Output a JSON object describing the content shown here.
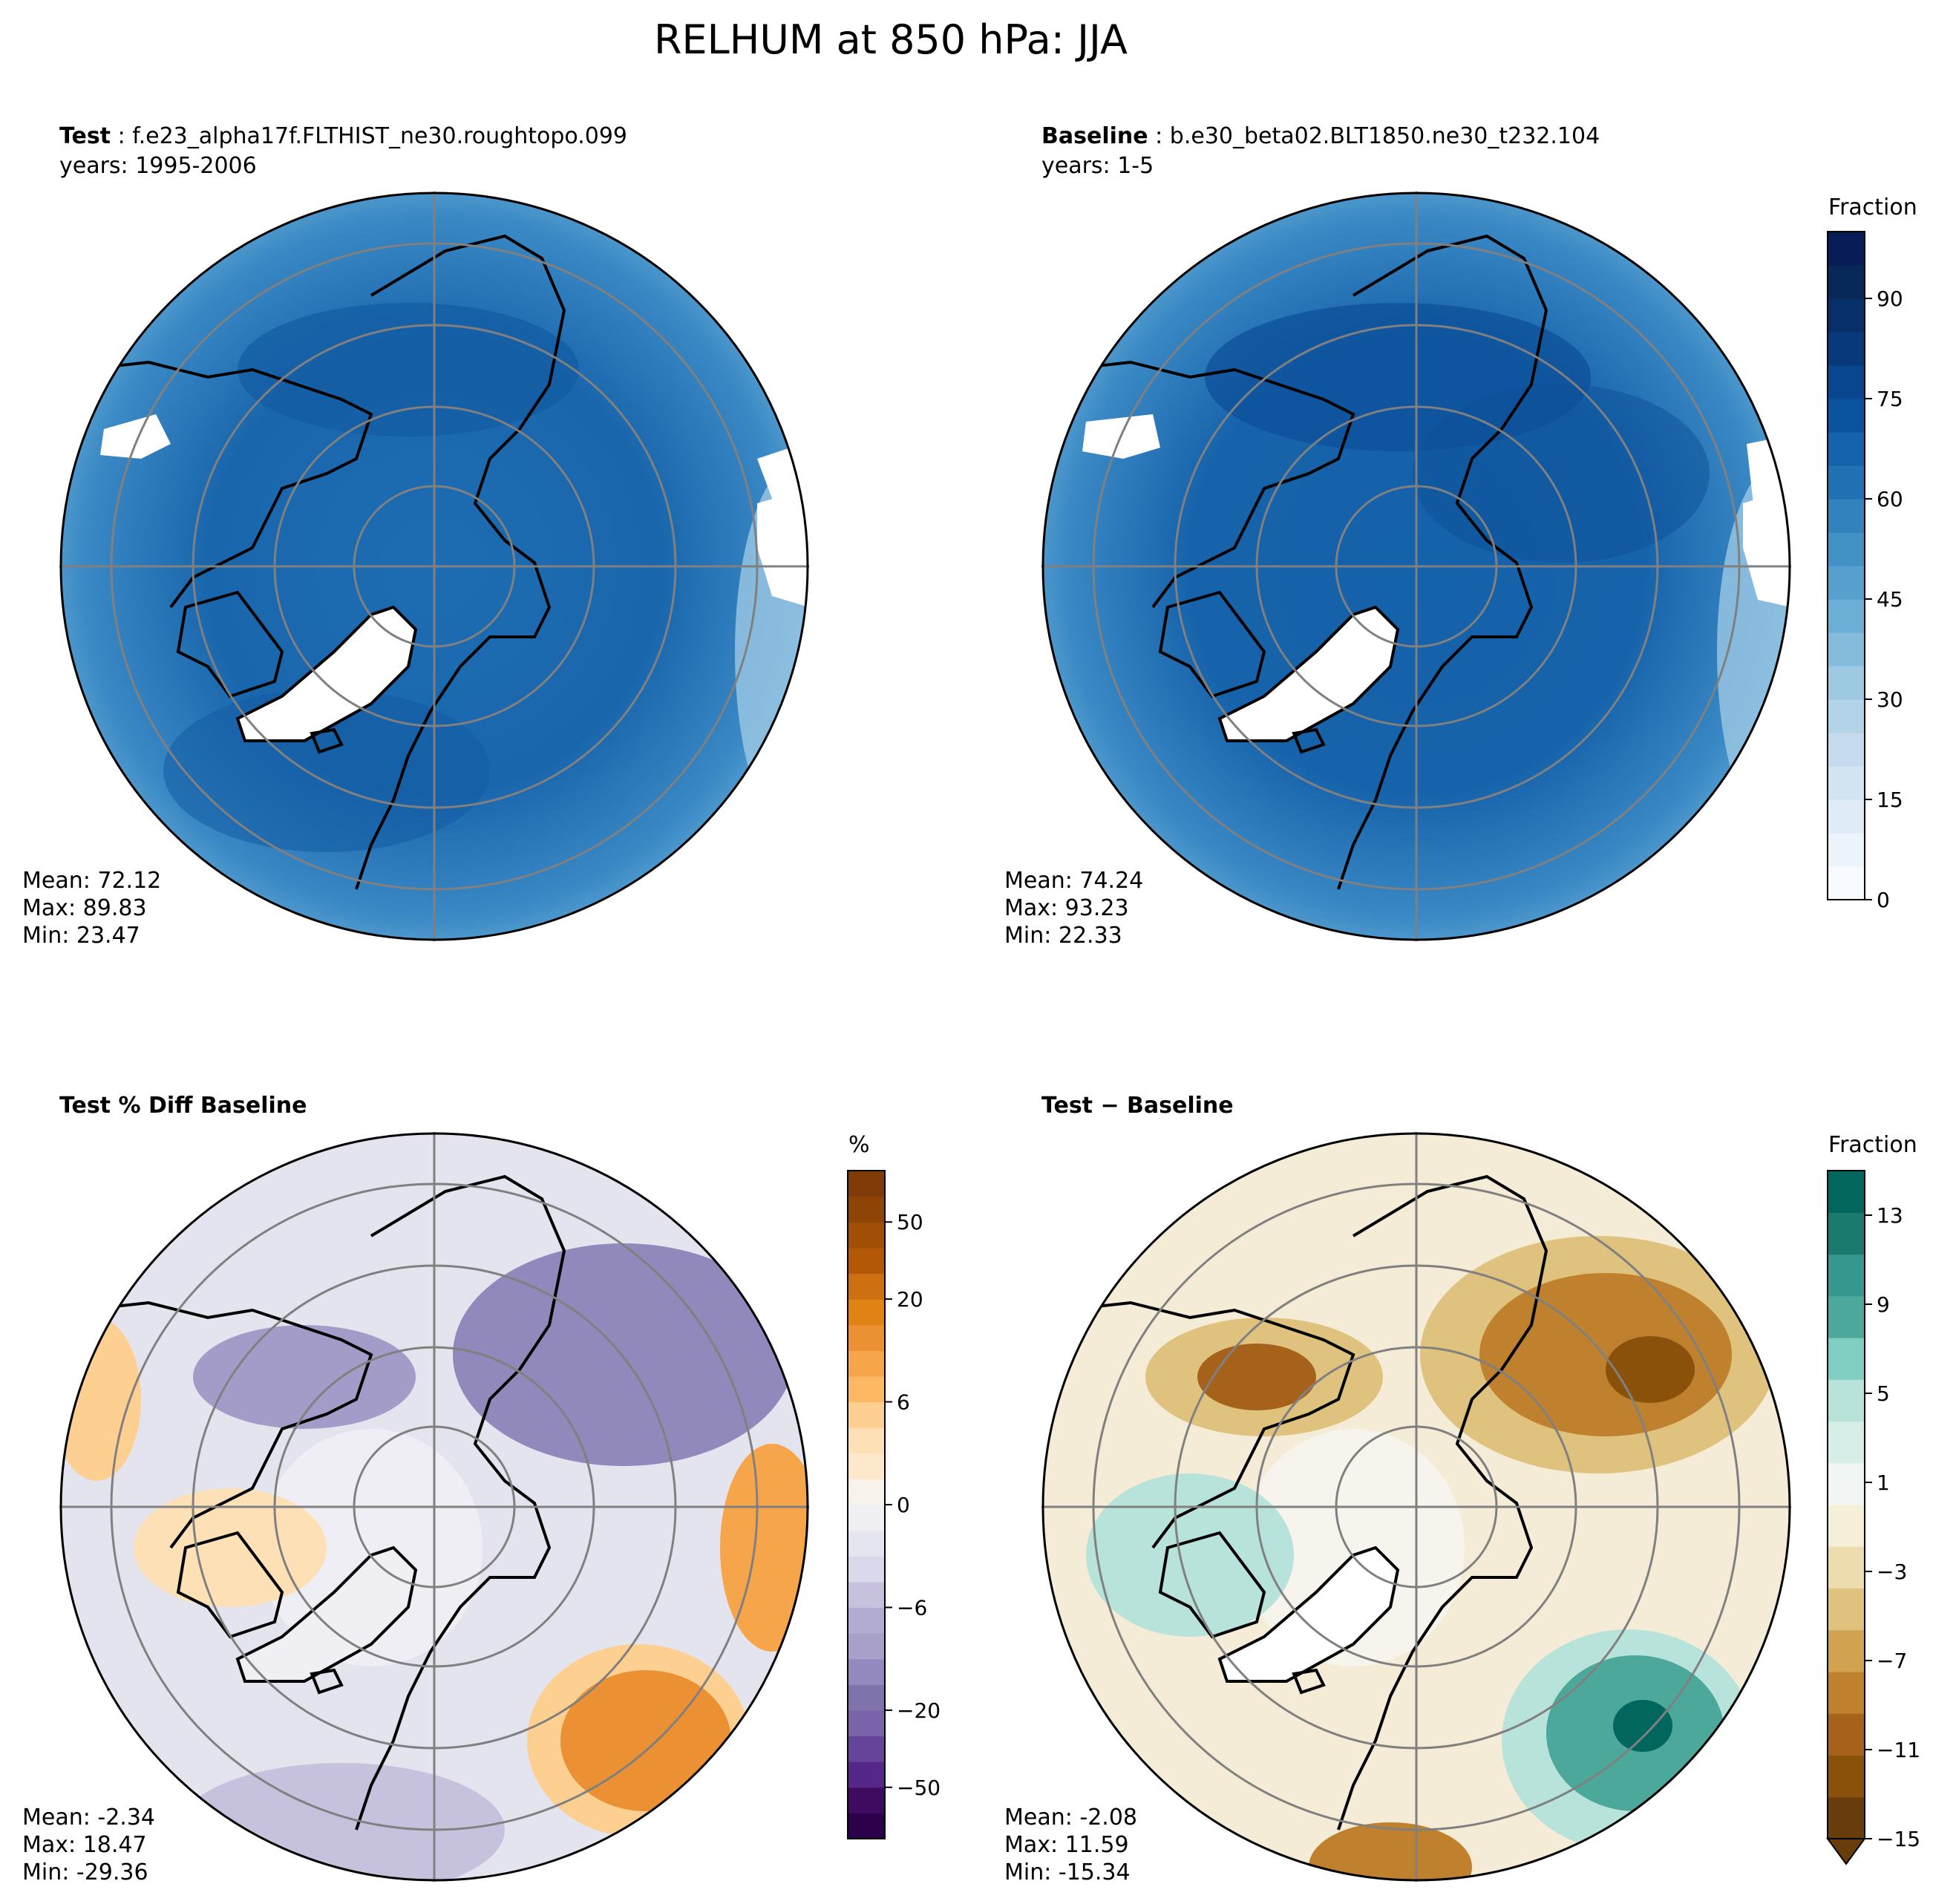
{
  "figure_title": "RELHUM at 850 hPa: JJA",
  "panels": {
    "test": {
      "label": "Test",
      "case": "f.e23_alpha17f.FLTHIST_ne30.roughtopo.099",
      "years": "years: 1995-2006",
      "mean": "Mean: 72.12",
      "max": "Max: 89.83",
      "min": "Min: 23.47"
    },
    "baseline": {
      "label": "Baseline",
      "case": "b.e30_beta02.BLT1850.ne30_t232.104",
      "years": "years: 1-5",
      "mean": "Mean: 74.24",
      "max": "Max: 93.23",
      "min": "Min: 22.33"
    },
    "pctdiff": {
      "label": "Test % Diff Baseline",
      "mean": "Mean: -2.34",
      "max": "Max: 18.47",
      "min": "Min: -29.36"
    },
    "diff": {
      "label": "Test − Baseline",
      "mean": "Mean: -2.08",
      "max": "Max: 11.59",
      "min": "Min: -15.34"
    }
  },
  "colorbars": {
    "top": {
      "label": "Fraction",
      "ticks": [
        "0",
        "15",
        "30",
        "45",
        "60",
        "75",
        "90"
      ],
      "tick_values": [
        0,
        15,
        30,
        45,
        60,
        75,
        90
      ],
      "range": [
        0,
        100
      ],
      "levels": 20,
      "colors": [
        "#f7fbff",
        "#ebf3fb",
        "#dfecf7",
        "#d3e4f3",
        "#c6dbef",
        "#b3d3e8",
        "#9ecae1",
        "#85bcdc",
        "#6baed6",
        "#56a0ce",
        "#4292c6",
        "#3282be",
        "#2171b5",
        "#1563aa",
        "#0a549e",
        "#084690",
        "#08397a",
        "#083068",
        "#08285a",
        "#081d58"
      ]
    },
    "pct": {
      "label": "%",
      "ticks": [
        "50",
        "20",
        "6",
        "0",
        "−6",
        "−20",
        "−50"
      ],
      "levels": [
        "-100",
        "-75",
        "-50",
        "-40",
        "-30",
        "-20",
        "-15",
        "-10",
        "-8",
        "-6",
        "-4",
        "-2",
        "-1",
        "0",
        "1",
        "2",
        "4",
        "6",
        "8",
        "10",
        "15",
        "20",
        "30",
        "40",
        "50",
        "75",
        "100"
      ],
      "colors": [
        "#2d004b",
        "#3f0b60",
        "#542788",
        "#65449a",
        "#7a64a9",
        "#8073ac",
        "#9588be",
        "#a8a0c9",
        "#b2abd2",
        "#c6c2de",
        "#d8daeb",
        "#e5e5f0",
        "#f0f0f4",
        "#f7f2ea",
        "#fde8cc",
        "#fee0b6",
        "#fdcf91",
        "#fdb863",
        "#f7a54a",
        "#ec9133",
        "#e08214",
        "#cc7012",
        "#b35806",
        "#a14f07",
        "#8d4405",
        "#7f3b08"
      ]
    },
    "diff": {
      "label": "Fraction",
      "ticks": [
        "13",
        "9",
        "5",
        "1",
        "−3",
        "−7",
        "−11",
        "−15"
      ],
      "levels": [
        "-15",
        "-13",
        "-11",
        "-9",
        "-7",
        "-5",
        "-3",
        "-1",
        "1",
        "3",
        "5",
        "7",
        "9",
        "11",
        "13",
        "15"
      ],
      "colors": [
        "#693d0b",
        "#8a510a",
        "#a6611a",
        "#bf812d",
        "#d1a24f",
        "#dfc27d",
        "#ecdcae",
        "#f6efd8",
        "#f1f6f5",
        "#d7ede8",
        "#b8e3da",
        "#80cdc1",
        "#4ba89a",
        "#35978f",
        "#1b7a6e",
        "#01665e"
      ]
    }
  },
  "chart_data": [
    {
      "type": "heatmap",
      "title": "Test: f.e23_alpha17f.FLTHIST_ne30.roughtopo.099",
      "projection": "north polar stereographic",
      "variable": "RELHUM",
      "level": "850 hPa",
      "season": "JJA",
      "units": "Fraction",
      "stats": {
        "mean": 72.12,
        "max": 89.83,
        "min": 23.47
      }
    },
    {
      "type": "heatmap",
      "title": "Baseline: b.e30_beta02.BLT1850.ne30_t232.104",
      "projection": "north polar stereographic",
      "units": "Fraction",
      "stats": {
        "mean": 74.24,
        "max": 93.23,
        "min": 22.33
      }
    },
    {
      "type": "heatmap",
      "title": "Test % Diff Baseline",
      "units": "%",
      "stats": {
        "mean": -2.34,
        "max": 18.47,
        "min": -29.36
      }
    },
    {
      "type": "heatmap",
      "title": "Test − Baseline",
      "units": "Fraction",
      "stats": {
        "mean": -2.08,
        "max": 11.59,
        "min": -15.34
      }
    }
  ]
}
